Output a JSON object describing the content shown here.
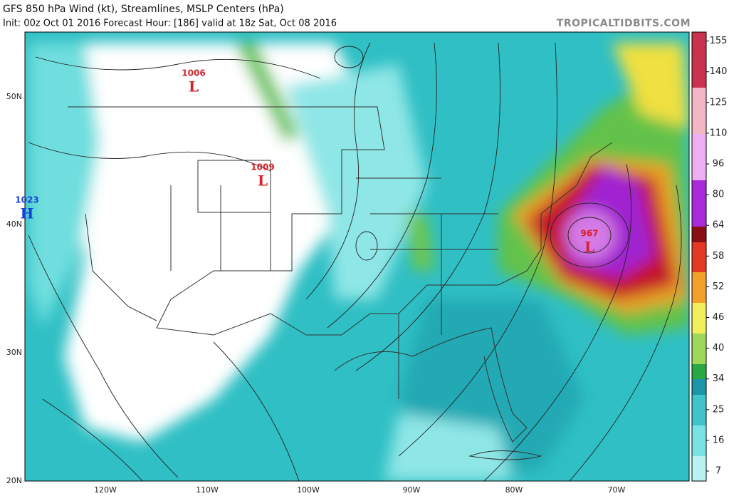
{
  "header": {
    "title": "GFS 850 hPa Wind (kt), Streamlines, MSLP Centers (hPa)",
    "subtitle": "Init: 00z Oct 01 2016   Forecast Hour: [186]   valid at 18z Sat, Oct 08 2016",
    "watermark": "TROPICALTIDBITS.COM"
  },
  "pressure_centers": [
    {
      "value": "1006",
      "symbol": "L"
    },
    {
      "value": "1009",
      "symbol": "L"
    },
    {
      "value": "1023",
      "symbol": "H"
    },
    {
      "value": "967",
      "symbol": "L"
    }
  ],
  "lat_labels": [
    "50N",
    "40N",
    "30N",
    "20N"
  ],
  "lon_labels": [
    "120W",
    "110W",
    "100W",
    "90W",
    "80W",
    "70W"
  ],
  "colorbar_ticks": [
    7,
    16,
    25,
    34,
    40,
    46,
    52,
    58,
    64,
    80,
    96,
    110,
    125,
    140,
    155
  ]
}
